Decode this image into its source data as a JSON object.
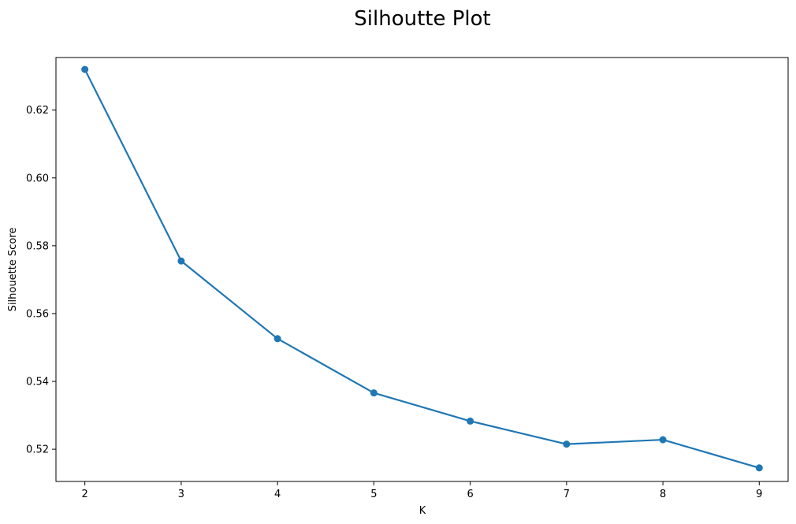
{
  "chart_data": {
    "type": "line",
    "title": "Silhoutte Plot",
    "xlabel": "K",
    "ylabel": "Silhouette Score",
    "x": [
      2,
      3,
      4,
      5,
      6,
      7,
      8,
      9
    ],
    "series": [
      {
        "name": "Silhouette Score",
        "values": [
          0.632,
          0.5755,
          0.5526,
          0.5366,
          0.5283,
          0.5215,
          0.5228,
          0.5145
        ],
        "color": "#1f77b4",
        "marker": "circle"
      }
    ],
    "xlim": [
      1.7,
      9.3
    ],
    "ylim": [
      0.5105,
      0.6355
    ],
    "xticks": [
      2,
      3,
      4,
      5,
      6,
      7,
      8,
      9
    ],
    "xtick_labels": [
      "2",
      "3",
      "4",
      "5",
      "6",
      "7",
      "8",
      "9"
    ],
    "yticks": [
      0.52,
      0.54,
      0.56,
      0.58,
      0.6,
      0.62
    ],
    "ytick_labels": [
      "0.52",
      "0.54",
      "0.56",
      "0.58",
      "0.60",
      "0.62"
    ],
    "grid": false,
    "legend": "none"
  }
}
